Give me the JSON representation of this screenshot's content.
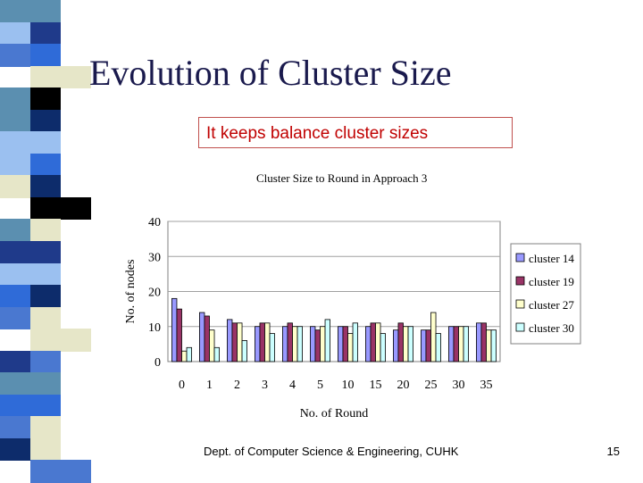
{
  "slide": {
    "title": "Evolution of Cluster Size",
    "callout": "It keeps balance cluster sizes",
    "footer": "Dept. of Computer Science & Engineering, CUHK",
    "page_number": "15"
  },
  "stripe_colors": [
    "#5b8fb0",
    "#1f3a8a",
    "#4a78d0",
    "#e6e6c8",
    "#5b8fb0",
    "#0d2c6b",
    "#9bc0f0",
    "#2f6bd8",
    "#e6e6c8",
    "#000000",
    "#5b8fb0",
    "#1f3a8a",
    "#9bc0f0",
    "#0d2c6b",
    "#4a78d0",
    "#e6e6c8",
    "#1f3a8a",
    "#5b8fb0",
    "#2f6bd8",
    "#e6e6c8",
    "#0d2c6b",
    "#4a78d0"
  ],
  "chart_data": {
    "type": "bar",
    "title": "Cluster Size to Round in Approach 3",
    "xlabel": "No. of Round",
    "ylabel": "No. of nodes",
    "ylim": [
      0,
      40
    ],
    "yticks": [
      0,
      10,
      20,
      30,
      40
    ],
    "grid": true,
    "legend_position": "right",
    "categories": [
      "0",
      "1",
      "2",
      "3",
      "4",
      "5",
      "10",
      "15",
      "20",
      "25",
      "30",
      "35"
    ],
    "series": [
      {
        "name": "cluster 14",
        "color": "#9999ff",
        "values": [
          18,
          14,
          12,
          10,
          10,
          10,
          10,
          10,
          9,
          9,
          10,
          11
        ]
      },
      {
        "name": "cluster 19",
        "color": "#993366",
        "values": [
          15,
          13,
          11,
          11,
          11,
          9,
          10,
          11,
          11,
          9,
          10,
          11
        ]
      },
      {
        "name": "cluster 27",
        "color": "#ffffcc",
        "values": [
          3,
          9,
          11,
          11,
          10,
          10,
          8,
          11,
          10,
          14,
          10,
          9
        ]
      },
      {
        "name": "cluster 30",
        "color": "#ccffff",
        "values": [
          4,
          4,
          6,
          8,
          10,
          12,
          11,
          8,
          10,
          8,
          10,
          9
        ]
      }
    ]
  }
}
